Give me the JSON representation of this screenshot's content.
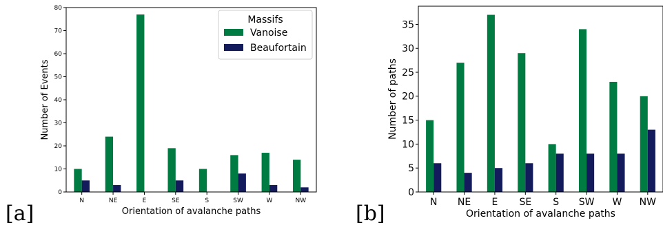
{
  "colors": {
    "vanoise": "#007c43",
    "beaufortain": "#131b5c"
  },
  "chart_data": [
    {
      "type": "bar",
      "panel_label": "[a]",
      "xlabel": "Orientation of avalanche paths",
      "ylabel": "Number of Events",
      "categories": [
        "N",
        "NE",
        "E",
        "SE",
        "S",
        "SW",
        "W",
        "NW"
      ],
      "ylim": [
        0,
        80
      ],
      "yticks": [
        0,
        10,
        20,
        30,
        40,
        50,
        60,
        70,
        80
      ],
      "grid": false,
      "legend": {
        "title": "Massifs",
        "placement": "top-right"
      },
      "series": [
        {
          "name": "Vanoise",
          "values": [
            10,
            24,
            77,
            19,
            10,
            16,
            17,
            14
          ]
        },
        {
          "name": "Beaufortain",
          "values": [
            5,
            3,
            0,
            5,
            0,
            8,
            3,
            2
          ]
        }
      ]
    },
    {
      "type": "bar",
      "panel_label": "[b]",
      "xlabel": "Orientation of avalanche paths",
      "ylabel": "Number of paths",
      "categories": [
        "N",
        "NE",
        "E",
        "SE",
        "S",
        "SW",
        "W",
        "NW"
      ],
      "ylim": [
        0,
        38.8
      ],
      "yticks": [
        0,
        5,
        10,
        15,
        20,
        25,
        30,
        35
      ],
      "grid": false,
      "series": [
        {
          "name": "Vanoise",
          "values": [
            15,
            27,
            37,
            29,
            10,
            34,
            23,
            20
          ]
        },
        {
          "name": "Beaufortain",
          "values": [
            6,
            4,
            5,
            6,
            8,
            8,
            8,
            13
          ]
        }
      ]
    }
  ]
}
